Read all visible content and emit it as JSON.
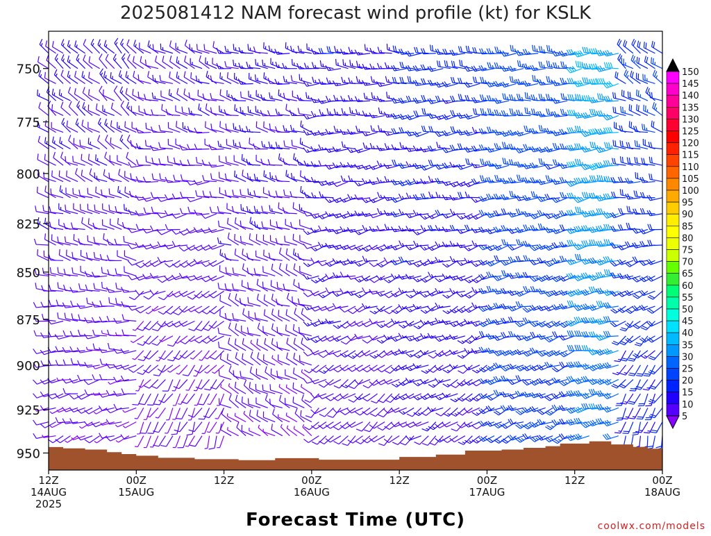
{
  "chart_data": {
    "type": "wind-barb-time-height",
    "title": "2025081412 NAM forecast wind profile (kt) for KSLK",
    "xlabel": "Forecast Time (UTC)",
    "ylabel": "",
    "credit": "coolwx.com/models",
    "units": "kt",
    "x_ticks": [
      {
        "hour": 0,
        "lines": [
          "12Z",
          "14AUG",
          "2025"
        ]
      },
      {
        "hour": 12,
        "lines": [
          "00Z",
          "15AUG"
        ]
      },
      {
        "hour": 24,
        "lines": [
          "12Z"
        ]
      },
      {
        "hour": 36,
        "lines": [
          "00Z",
          "16AUG"
        ]
      },
      {
        "hour": 48,
        "lines": [
          "12Z"
        ]
      },
      {
        "hour": 60,
        "lines": [
          "00Z",
          "17AUG"
        ]
      },
      {
        "hour": 72,
        "lines": [
          "12Z"
        ]
      },
      {
        "hour": 84,
        "lines": [
          "00Z",
          "18AUG"
        ]
      }
    ],
    "xlim": [
      0,
      84
    ],
    "y_ticks": [
      750,
      775,
      800,
      825,
      850,
      875,
      900,
      925,
      950
    ],
    "ylim_hpa": [
      733,
      960
    ],
    "colorbar_labels": [
      150,
      145,
      140,
      135,
      130,
      125,
      120,
      115,
      110,
      105,
      100,
      95,
      90,
      85,
      80,
      75,
      70,
      65,
      60,
      55,
      50,
      45,
      40,
      35,
      30,
      25,
      20,
      15,
      10,
      5
    ],
    "colorbar_colors": [
      "#ff00ff",
      "#ff00cc",
      "#ff0099",
      "#ff0066",
      "#ff0033",
      "#ff0000",
      "#ff2200",
      "#ff4400",
      "#ff6600",
      "#ff8800",
      "#ffaa00",
      "#ffcc00",
      "#ffee00",
      "#ffff00",
      "#eeff00",
      "#ccff00",
      "#66ff00",
      "#33ee33",
      "#00ff77",
      "#00ffaa",
      "#00ffdd",
      "#00e0ff",
      "#00bbff",
      "#0099ff",
      "#0066ff",
      "#0044ff",
      "#0022ff",
      "#2200ff",
      "#5500ff",
      "#8800ff"
    ],
    "colorbar_arrow_top": "#000000",
    "colorbar_arrow_bottom": "#8800ff",
    "terrain_color": "#a0522d",
    "surface_pressure_hpa": [
      {
        "hour": 0,
        "p": 946.5
      },
      {
        "hour": 2,
        "p": 947.3
      },
      {
        "hour": 5,
        "p": 948.0
      },
      {
        "hour": 8,
        "p": 949.5
      },
      {
        "hour": 10,
        "p": 950.6
      },
      {
        "hour": 12,
        "p": 951.6
      },
      {
        "hour": 15,
        "p": 952.8
      },
      {
        "hour": 20,
        "p": 953.6
      },
      {
        "hour": 26,
        "p": 954.2
      },
      {
        "hour": 31,
        "p": 953.0
      },
      {
        "hour": 37,
        "p": 953.9
      },
      {
        "hour": 48,
        "p": 952.3
      },
      {
        "hour": 53,
        "p": 950.9
      },
      {
        "hour": 57,
        "p": 948.6
      },
      {
        "hour": 62,
        "p": 948.0
      },
      {
        "hour": 65,
        "p": 947.0
      },
      {
        "hour": 68,
        "p": 946.0
      },
      {
        "hour": 70,
        "p": 944.5
      },
      {
        "hour": 74,
        "p": 943.2
      },
      {
        "hour": 77,
        "p": 945.0
      },
      {
        "hour": 80,
        "p": 946.4
      },
      {
        "hour": 82,
        "p": 947.5
      },
      {
        "hour": 84,
        "p": 948.0
      }
    ],
    "wind_field": {
      "hour_step": 1,
      "pressure_levels": [
        743,
        750,
        757,
        765,
        772,
        780,
        788,
        796,
        804,
        812,
        820,
        828,
        836,
        844,
        852,
        860,
        868,
        876,
        884,
        892,
        900,
        908,
        916,
        924,
        932,
        940
      ],
      "regimes": [
        {
          "hours": [
            0,
            12
          ],
          "dir_deg_top": 315,
          "dir_deg_bottom": 250,
          "speed_kt_top": 13,
          "speed_kt_bottom": 8
        },
        {
          "hours": [
            12,
            24
          ],
          "dir_deg_top": 300,
          "dir_deg_bottom": 200,
          "speed_kt_top": 12,
          "speed_kt_bottom": 7
        },
        {
          "hours": [
            24,
            36
          ],
          "dir_deg_top": 280,
          "dir_deg_bottom": 300,
          "speed_kt_top": 14,
          "speed_kt_bottom": 8
        },
        {
          "hours": [
            36,
            48
          ],
          "dir_deg_top": 275,
          "dir_deg_bottom": 230,
          "speed_kt_top": 16,
          "speed_kt_bottom": 10
        },
        {
          "hours": [
            48,
            60
          ],
          "dir_deg_top": 270,
          "dir_deg_bottom": 235,
          "speed_kt_top": 20,
          "speed_kt_bottom": 12
        },
        {
          "hours": [
            60,
            72
          ],
          "dir_deg_top": 270,
          "dir_deg_bottom": 245,
          "speed_kt_top": 25,
          "speed_kt_bottom": 22
        },
        {
          "hours": [
            72,
            78
          ],
          "dir_deg_top": 265,
          "dir_deg_bottom": 255,
          "speed_kt_top": 38,
          "speed_kt_bottom": 30
        },
        {
          "hours": [
            78,
            84
          ],
          "dir_deg_top": 310,
          "dir_deg_bottom": 195,
          "speed_kt_top": 22,
          "speed_kt_bottom": 18
        }
      ]
    },
    "grid": false,
    "legend": "colorbar-right"
  }
}
